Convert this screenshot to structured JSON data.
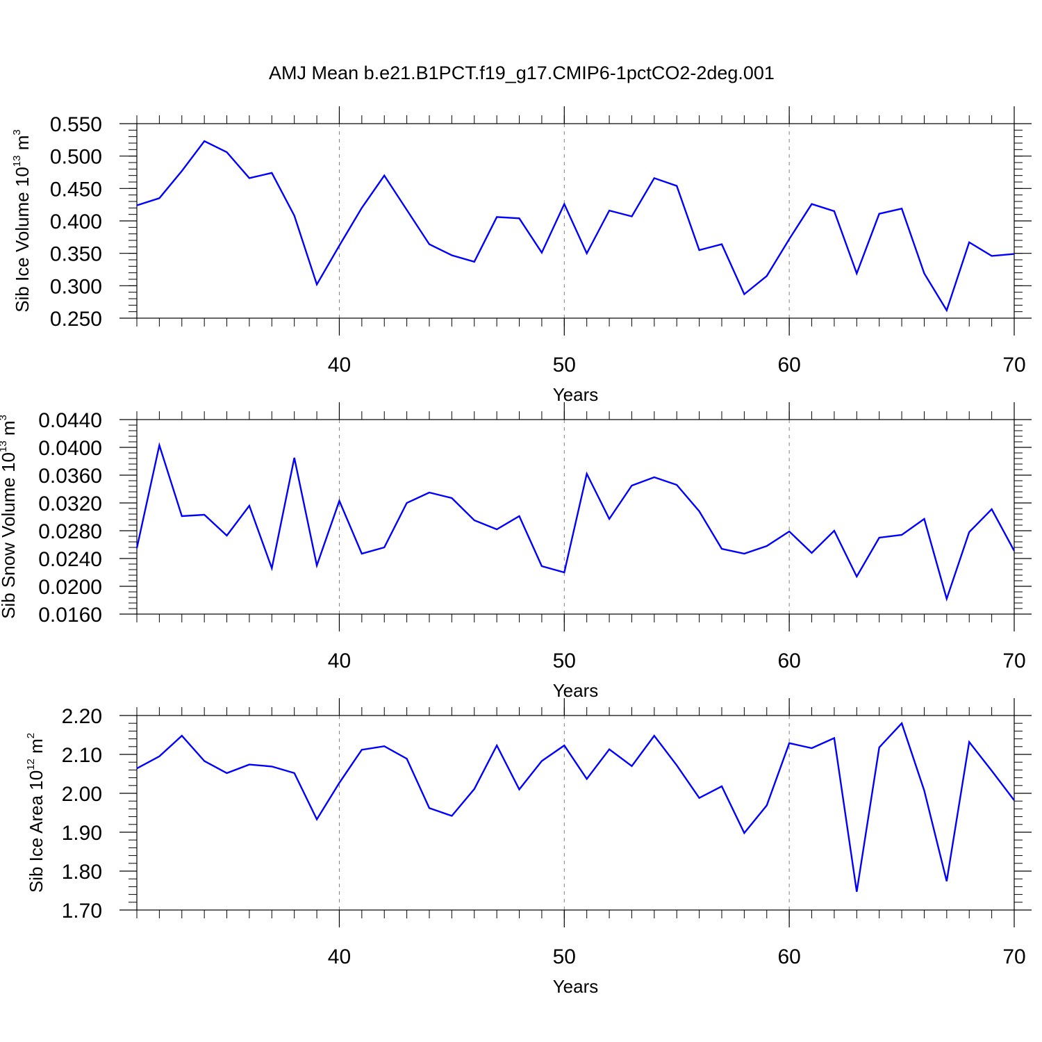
{
  "title": "AMJ Mean b.e21.B1PCT.f19_g17.CMIP6-1pctCO2-2deg.001",
  "colors": {
    "line": "#0000ff",
    "axis": "#000000",
    "grid": "#808080"
  },
  "chart_data": [
    {
      "type": "line",
      "xlabel": "Years",
      "ylabel": {
        "text": "Sib Ice Volume 10",
        "exponent": "13",
        "unit": " m",
        "unit_exponent": "3"
      },
      "xlim": [
        31,
        70
      ],
      "ylim": [
        0.25,
        0.55
      ],
      "xticks": [
        40,
        50,
        60,
        70
      ],
      "xtick_labels": [
        "40",
        "50",
        "60",
        "70"
      ],
      "yticks": [
        0.25,
        0.3,
        0.35,
        0.4,
        0.45,
        0.5,
        0.55
      ],
      "ytick_labels": [
        "0.250",
        "0.300",
        "0.350",
        "0.400",
        "0.450",
        "0.500",
        "0.550"
      ],
      "grid": "dashed vertical at major x ticks",
      "x": [
        31,
        32,
        33,
        34,
        35,
        36,
        37,
        38,
        39,
        40,
        41,
        42,
        43,
        44,
        45,
        46,
        47,
        48,
        49,
        50,
        51,
        52,
        53,
        54,
        55,
        56,
        57,
        58,
        59,
        60,
        61,
        62,
        63,
        64,
        65,
        66,
        67,
        68,
        69,
        70
      ],
      "values": [
        0.424,
        0.435,
        0.477,
        0.523,
        0.506,
        0.466,
        0.474,
        0.408,
        0.302,
        0.362,
        0.42,
        0.47,
        0.417,
        0.364,
        0.347,
        0.337,
        0.406,
        0.404,
        0.351,
        0.426,
        0.35,
        0.416,
        0.407,
        0.466,
        0.454,
        0.355,
        0.364,
        0.287,
        0.315,
        0.372,
        0.426,
        0.415,
        0.319,
        0.411,
        0.419,
        0.319,
        0.262,
        0.367,
        0.346,
        0.349
      ]
    },
    {
      "type": "line",
      "xlabel": "Years",
      "ylabel": {
        "text": "Sib Snow Volume 10",
        "exponent": "13",
        "unit": " m",
        "unit_exponent": "3"
      },
      "xlim": [
        31,
        70
      ],
      "ylim": [
        0.016,
        0.044
      ],
      "xticks": [
        40,
        50,
        60,
        70
      ],
      "xtick_labels": [
        "40",
        "50",
        "60",
        "70"
      ],
      "yticks": [
        0.016,
        0.02,
        0.024,
        0.028,
        0.032,
        0.036,
        0.04,
        0.044
      ],
      "ytick_labels": [
        "0.0160",
        "0.0200",
        "0.0240",
        "0.0280",
        "0.0320",
        "0.0360",
        "0.0400",
        "0.0440"
      ],
      "grid": "dashed vertical at major x ticks",
      "x": [
        31,
        32,
        33,
        34,
        35,
        36,
        37,
        38,
        39,
        40,
        41,
        42,
        43,
        44,
        45,
        46,
        47,
        48,
        49,
        50,
        51,
        52,
        53,
        54,
        55,
        56,
        57,
        58,
        59,
        60,
        61,
        62,
        63,
        64,
        65,
        66,
        67,
        68,
        69,
        70
      ],
      "values": [
        0.0255,
        0.0403,
        0.0301,
        0.0303,
        0.0273,
        0.0316,
        0.0226,
        0.0385,
        0.023,
        0.0323,
        0.0247,
        0.0256,
        0.032,
        0.0335,
        0.0327,
        0.0295,
        0.0282,
        0.0301,
        0.0229,
        0.022,
        0.0362,
        0.0297,
        0.0345,
        0.0357,
        0.0346,
        0.0308,
        0.0254,
        0.0247,
        0.0258,
        0.0279,
        0.0248,
        0.028,
        0.0214,
        0.027,
        0.0274,
        0.0297,
        0.0182,
        0.0278,
        0.0311,
        0.0251
      ]
    },
    {
      "type": "line",
      "xlabel": "Years",
      "ylabel": {
        "text": "Sib Ice Area 10",
        "exponent": "12",
        "unit": " m",
        "unit_exponent": "2"
      },
      "xlim": [
        31,
        70
      ],
      "ylim": [
        1.7,
        2.2
      ],
      "xticks": [
        40,
        50,
        60,
        70
      ],
      "xtick_labels": [
        "40",
        "50",
        "60",
        "70"
      ],
      "yticks": [
        1.7,
        1.8,
        1.9,
        2.0,
        2.1,
        2.2
      ],
      "ytick_labels": [
        "1.70",
        "1.80",
        "1.90",
        "2.00",
        "2.10",
        "2.20"
      ],
      "grid": "dashed vertical at major x ticks",
      "x": [
        31,
        32,
        33,
        34,
        35,
        36,
        37,
        38,
        39,
        40,
        41,
        42,
        43,
        44,
        45,
        46,
        47,
        48,
        49,
        50,
        51,
        52,
        53,
        54,
        55,
        56,
        57,
        58,
        59,
        60,
        61,
        62,
        63,
        64,
        65,
        66,
        67,
        68,
        69,
        70
      ],
      "values": [
        2.064,
        2.095,
        2.148,
        2.083,
        2.052,
        2.074,
        2.069,
        2.052,
        1.933,
        2.027,
        2.112,
        2.121,
        2.089,
        1.962,
        1.942,
        2.011,
        2.123,
        2.01,
        2.083,
        2.123,
        2.037,
        2.113,
        2.07,
        2.148,
        2.072,
        1.988,
        2.018,
        1.898,
        1.969,
        2.129,
        2.116,
        2.142,
        1.747,
        2.118,
        2.18,
        2.007,
        1.774,
        2.132,
        2.058,
        1.982
      ]
    }
  ]
}
